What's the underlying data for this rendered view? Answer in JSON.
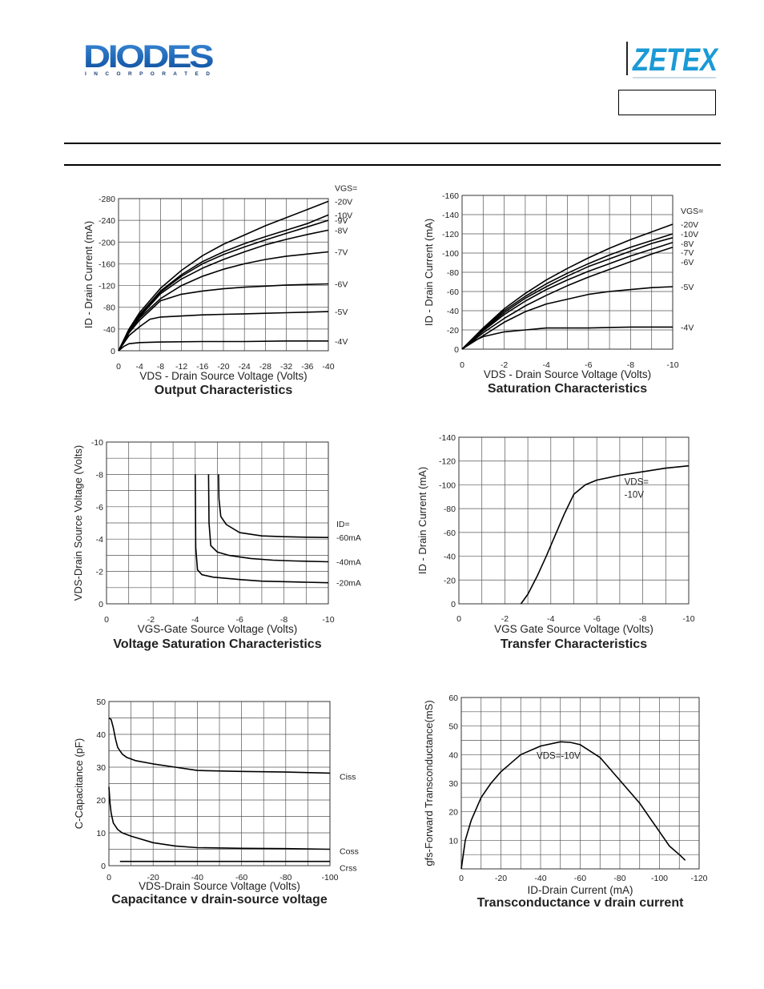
{
  "header": {
    "brand_left": "DIODES",
    "brand_left_sub": "I N C O R P O R A T E D",
    "brand_right": "ZETEX"
  },
  "chart_data": [
    {
      "id": "output",
      "type": "line",
      "title": "Output Characteristics",
      "xlabel": "VDS - Drain Source Voltage (Volts)",
      "ylabel": "ID - Drain Current (mA)",
      "xlim": [
        0,
        -40
      ],
      "ylim": [
        0,
        -280
      ],
      "xticks": [
        0,
        -4,
        -8,
        -12,
        -16,
        -20,
        -24,
        -28,
        -32,
        -36,
        -40
      ],
      "yticks": [
        0,
        -40,
        -80,
        -120,
        -160,
        -200,
        -240,
        -280
      ],
      "xtick_labels": [
        "0",
        "-4",
        "-8",
        "-12",
        "-16",
        "-20",
        "-24",
        "-28",
        "-32",
        "-36",
        "-40"
      ],
      "ytick_labels": [
        "0",
        "-40",
        "-80",
        "-120",
        "-160",
        "-200",
        "-240",
        "-280"
      ],
      "legend_header": "VGS=",
      "series": [
        {
          "name": "-20V",
          "x": [
            0,
            -2,
            -4,
            -8,
            -12,
            -16,
            -20,
            -24,
            -28,
            -32,
            -36,
            -40
          ],
          "y": [
            0,
            -40,
            -70,
            -115,
            -148,
            -175,
            -196,
            -213,
            -230,
            -245,
            -260,
            -275
          ]
        },
        {
          "name": "-10V",
          "x": [
            0,
            -2,
            -4,
            -8,
            -12,
            -16,
            -20,
            -24,
            -28,
            -32,
            -36,
            -40
          ],
          "y": [
            0,
            -38,
            -66,
            -110,
            -140,
            -164,
            -182,
            -197,
            -210,
            -222,
            -234,
            -250
          ]
        },
        {
          "name": "-9V",
          "x": [
            0,
            -2,
            -4,
            -8,
            -12,
            -16,
            -20,
            -24,
            -28,
            -32,
            -36,
            -40
          ],
          "y": [
            0,
            -37,
            -64,
            -108,
            -137,
            -160,
            -177,
            -191,
            -204,
            -216,
            -228,
            -240
          ]
        },
        {
          "name": "-8V",
          "x": [
            0,
            -2,
            -4,
            -8,
            -12,
            -16,
            -20,
            -24,
            -28,
            -32,
            -36,
            -40
          ],
          "y": [
            0,
            -36,
            -62,
            -105,
            -132,
            -152,
            -168,
            -182,
            -195,
            -205,
            -214,
            -222
          ]
        },
        {
          "name": "-7V",
          "x": [
            0,
            -2,
            -4,
            -8,
            -12,
            -16,
            -20,
            -24,
            -28,
            -32,
            -36,
            -40
          ],
          "y": [
            0,
            -35,
            -60,
            -96,
            -120,
            -137,
            -150,
            -160,
            -168,
            -174,
            -178,
            -182
          ]
        },
        {
          "name": "-6V",
          "x": [
            0,
            -2,
            -4,
            -8,
            -12,
            -16,
            -20,
            -24,
            -28,
            -32,
            -36,
            -40
          ],
          "y": [
            0,
            -33,
            -56,
            -92,
            -104,
            -110,
            -114,
            -117,
            -119,
            -121,
            -122,
            -123
          ]
        },
        {
          "name": "-5V",
          "x": [
            0,
            -2,
            -4,
            -6,
            -8,
            -12,
            -16,
            -20,
            -24,
            -28,
            -32,
            -36,
            -40
          ],
          "y": [
            0,
            -28,
            -44,
            -58,
            -62,
            -64,
            -66,
            -67,
            -68,
            -69,
            -70,
            -71,
            -72
          ]
        },
        {
          "name": "-4V",
          "x": [
            0,
            -1,
            -2,
            -4,
            -8,
            -16,
            -24,
            -32,
            -40
          ],
          "y": [
            0,
            -8,
            -13,
            -15,
            -16,
            -17,
            -17,
            -18,
            -18
          ]
        }
      ]
    },
    {
      "id": "saturation",
      "type": "line",
      "title": "Saturation Characteristics",
      "xlabel": "VDS - Drain Source Voltage (Volts)",
      "ylabel": "ID - Drain Current (mA)",
      "xlim": [
        0,
        -10
      ],
      "ylim": [
        0,
        -160
      ],
      "xticks": [
        0,
        -1,
        -2,
        -3,
        -4,
        -5,
        -6,
        -7,
        -8,
        -9,
        -10
      ],
      "yticks": [
        0,
        -20,
        -40,
        -60,
        -80,
        -100,
        -120,
        -140,
        -160
      ],
      "xtick_labels": [
        "0",
        "",
        "-2",
        "",
        "-4",
        "",
        "-6",
        "",
        "-8",
        "",
        "-10"
      ],
      "ytick_labels": [
        "0",
        "-20",
        "-40",
        "-60",
        "-80",
        "-100",
        "-120",
        "-140",
        "-160"
      ],
      "legend_header": "VGS=",
      "series": [
        {
          "name": "-20V",
          "x": [
            0,
            -1,
            -2,
            -3,
            -4,
            -5,
            -6,
            -7,
            -8,
            -9,
            -10
          ],
          "y": [
            0,
            -22,
            -42,
            -58,
            -72,
            -84,
            -95,
            -105,
            -114,
            -122,
            -130
          ]
        },
        {
          "name": "-10V",
          "x": [
            0,
            -1,
            -2,
            -3,
            -4,
            -5,
            -6,
            -7,
            -8,
            -9,
            -10
          ],
          "y": [
            0,
            -21,
            -40,
            -55,
            -68,
            -79,
            -89,
            -98,
            -106,
            -113,
            -120
          ]
        },
        {
          "name": "-8V",
          "x": [
            0,
            -1,
            -2,
            -3,
            -4,
            -5,
            -6,
            -7,
            -8,
            -9,
            -10
          ],
          "y": [
            0,
            -20,
            -38,
            -53,
            -65,
            -76,
            -86,
            -94,
            -102,
            -110,
            -116
          ]
        },
        {
          "name": "-7V",
          "x": [
            0,
            -1,
            -2,
            -3,
            -4,
            -5,
            -6,
            -7,
            -8,
            -9,
            -10
          ],
          "y": [
            0,
            -19,
            -36,
            -50,
            -62,
            -72,
            -81,
            -89,
            -97,
            -104,
            -111
          ]
        },
        {
          "name": "-6V",
          "x": [
            0,
            -1,
            -2,
            -3,
            -4,
            -5,
            -6,
            -7,
            -8,
            -9,
            -10
          ],
          "y": [
            0,
            -17,
            -32,
            -45,
            -56,
            -66,
            -75,
            -83,
            -91,
            -99,
            -106
          ]
        },
        {
          "name": "-5V",
          "x": [
            0,
            -1,
            -2,
            -3,
            -4,
            -5,
            -6,
            -7,
            -8,
            -9,
            -10
          ],
          "y": [
            0,
            -14,
            -28,
            -39,
            -47,
            -52,
            -57,
            -60,
            -62,
            -64,
            -65
          ]
        },
        {
          "name": "-4V",
          "x": [
            0,
            -0.5,
            -1,
            -2,
            -3,
            -4,
            -6,
            -8,
            -10
          ],
          "y": [
            0,
            -8,
            -13,
            -18,
            -20,
            -22,
            -22,
            -23,
            -23
          ]
        }
      ]
    },
    {
      "id": "voltage-saturation",
      "type": "line",
      "title": "Voltage Saturation Characteristics",
      "xlabel": "VGS-Gate Source Voltage  (Volts)",
      "ylabel": "VDS-Drain Source  Voltage (Volts)",
      "xlim": [
        0,
        -10
      ],
      "ylim": [
        0,
        -10
      ],
      "xticks": [
        0,
        -1,
        -2,
        -3,
        -4,
        -5,
        -6,
        -7,
        -8,
        -9,
        -10
      ],
      "yticks": [
        0,
        -1,
        -2,
        -3,
        -4,
        -5,
        -6,
        -7,
        -8,
        -9,
        -10
      ],
      "xtick_labels": [
        "0",
        "",
        "-2",
        "",
        "-4",
        "",
        "-6",
        "",
        "-8",
        "",
        "-10"
      ],
      "ytick_labels": [
        "0",
        "",
        "-2",
        "",
        "-4",
        "",
        "-6",
        "",
        "-8",
        "",
        "-10"
      ],
      "legend_header": "ID=",
      "series": [
        {
          "name": "-60mA",
          "x": [
            -5.05,
            -5.07,
            -5.15,
            -5.4,
            -6,
            -7,
            -8,
            -9,
            -10
          ],
          "y": [
            -8,
            -6.5,
            -5.4,
            -4.9,
            -4.4,
            -4.2,
            -4.15,
            -4.12,
            -4.1
          ]
        },
        {
          "name": "-40mA",
          "x": [
            -4.6,
            -4.62,
            -4.7,
            -5,
            -5.5,
            -6.5,
            -7.5,
            -8.5,
            -10
          ],
          "y": [
            -8,
            -5,
            -3.6,
            -3.2,
            -3,
            -2.8,
            -2.7,
            -2.65,
            -2.6
          ]
        },
        {
          "name": "-20mA",
          "x": [
            -4.0,
            -4.02,
            -4.1,
            -4.3,
            -4.8,
            -6,
            -7,
            -8.5,
            -10
          ],
          "y": [
            -8,
            -3.5,
            -2.1,
            -1.8,
            -1.65,
            -1.5,
            -1.4,
            -1.35,
            -1.3
          ]
        }
      ]
    },
    {
      "id": "transfer",
      "type": "line",
      "title": "Transfer Characteristics",
      "xlabel": "VGS Gate Source Voltage (Volts)",
      "ylabel": "ID - Drain Current (mA)",
      "xlim": [
        0,
        -10
      ],
      "ylim": [
        0,
        -140
      ],
      "xticks": [
        0,
        -1,
        -2,
        -3,
        -4,
        -5,
        -6,
        -7,
        -8,
        -9,
        -10
      ],
      "yticks": [
        0,
        -20,
        -40,
        -60,
        -80,
        -100,
        -120,
        -140
      ],
      "xtick_labels": [
        "0",
        "",
        "-2",
        "",
        "-4",
        "",
        "-6",
        "",
        "-8",
        "",
        "-10"
      ],
      "ytick_labels": [
        "0",
        "-20",
        "-40",
        "-60",
        "-80",
        "-100",
        "-120",
        "-140"
      ],
      "annotation": "VDS=\n-10V",
      "series": [
        {
          "name": "",
          "x": [
            -2.7,
            -3,
            -3.4,
            -3.8,
            -4.2,
            -4.6,
            -5,
            -5.5,
            -6,
            -7,
            -8,
            -9,
            -10
          ],
          "y": [
            0,
            -8,
            -23,
            -40,
            -58,
            -76,
            -92,
            -100,
            -104,
            -108,
            -111,
            -114,
            -116
          ]
        }
      ]
    },
    {
      "id": "capacitance",
      "type": "line",
      "title": "Capacitance v drain-source voltage",
      "xlabel": "VDS-Drain Source Voltage (Volts)",
      "ylabel": "C-Capacitance (pF)",
      "xlim": [
        0,
        -100
      ],
      "ylim": [
        0,
        50
      ],
      "xticks": [
        0,
        -10,
        -20,
        -30,
        -40,
        -50,
        -60,
        -70,
        -80,
        -90,
        -100
      ],
      "yticks": [
        0,
        5,
        10,
        15,
        20,
        25,
        30,
        35,
        40,
        45,
        50
      ],
      "xtick_labels": [
        "0",
        "",
        "-20",
        "",
        "-40",
        "",
        "-60",
        "",
        "-80",
        "",
        "-100"
      ],
      "ytick_labels": [
        "0",
        "",
        "10",
        "",
        "20",
        "",
        "30",
        "",
        "40",
        "",
        "50"
      ],
      "series": [
        {
          "name": "Ciss",
          "x": [
            0,
            -1,
            -2,
            -3,
            -4,
            -6,
            -8,
            -12,
            -20,
            -30,
            -40,
            -60,
            -80,
            -100
          ],
          "y": [
            45,
            44.5,
            42,
            38.5,
            36,
            34,
            33,
            32,
            31,
            30,
            29,
            28.7,
            28.5,
            28.2
          ]
        },
        {
          "name": "Coss",
          "x": [
            0,
            -0.5,
            -1,
            -2,
            -4,
            -6,
            -10,
            -20,
            -30,
            -40,
            -60,
            -80,
            -100
          ],
          "y": [
            24,
            19,
            16,
            13,
            11,
            10,
            9,
            7,
            6,
            5.5,
            5.3,
            5.2,
            5
          ]
        },
        {
          "name": "Crss",
          "x": [
            -5,
            -100
          ],
          "y": [
            1.3,
            1.3
          ]
        }
      ]
    },
    {
      "id": "transconductance",
      "type": "line",
      "title": "Transconductance v drain current",
      "xlabel": "ID-Drain Current (mA)",
      "ylabel": "gfs-Forward Transconductance(mS)",
      "xlim": [
        0,
        -120
      ],
      "ylim": [
        0,
        60
      ],
      "xticks": [
        0,
        -10,
        -20,
        -30,
        -40,
        -50,
        -60,
        -70,
        -80,
        -90,
        -100,
        -110,
        -120
      ],
      "yticks": [
        0,
        5,
        10,
        15,
        20,
        25,
        30,
        35,
        40,
        45,
        50,
        55,
        60
      ],
      "xtick_labels": [
        "0",
        "",
        "-20",
        "",
        "-40",
        "",
        "-60",
        "",
        "-80",
        "",
        "-100",
        "",
        "-120"
      ],
      "ytick_labels": [
        "",
        "",
        "10",
        "",
        "20",
        "",
        "30",
        "",
        "40",
        "",
        "50",
        "",
        "60"
      ],
      "annotation": "VDS=-10V",
      "series": [
        {
          "name": "",
          "x": [
            0,
            -2,
            -5,
            -10,
            -15,
            -20,
            -30,
            -40,
            -50,
            -55,
            -60,
            -70,
            -80,
            -90,
            -95,
            -100,
            -105,
            -110,
            -113
          ],
          "y": [
            0,
            10,
            17,
            25,
            30,
            34,
            40,
            43,
            44.5,
            44.3,
            43.5,
            39,
            31,
            23,
            18,
            13,
            8,
            5,
            3
          ]
        }
      ]
    }
  ]
}
